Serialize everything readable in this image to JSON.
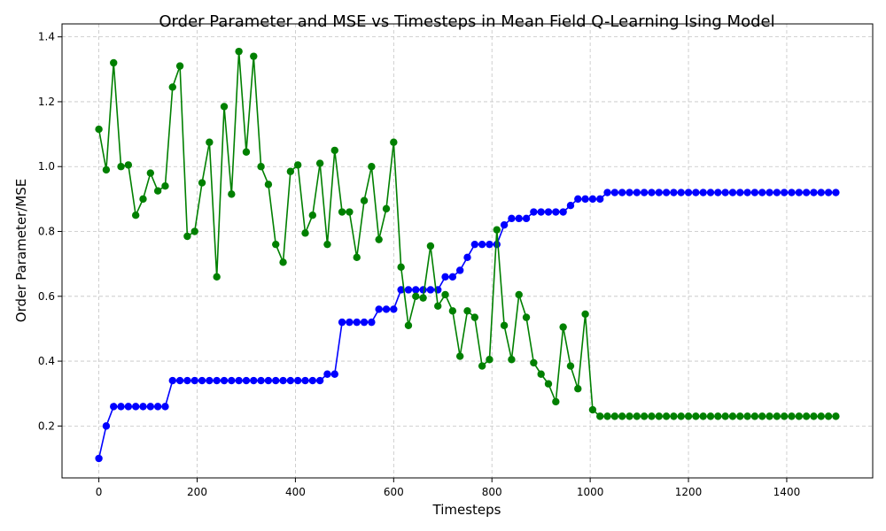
{
  "chart_data": {
    "type": "line",
    "title": "Order Parameter and MSE vs Timesteps in Mean Field Q-Learning Ising Model",
    "xlabel": "Timesteps",
    "ylabel": "Order Parameter/MSE",
    "xlim": [
      -75,
      1575
    ],
    "ylim": [
      0.04,
      1.44
    ],
    "xticks": [
      0,
      200,
      400,
      600,
      800,
      1000,
      1200,
      1400
    ],
    "yticks": [
      0.2,
      0.4,
      0.6,
      0.8,
      1.0,
      1.2,
      1.4
    ],
    "xtick_labels": [
      "0",
      "200",
      "400",
      "600",
      "800",
      "1000",
      "1200",
      "1400"
    ],
    "ytick_labels": [
      "0.2",
      "0.4",
      "0.6",
      "0.8",
      "1.0",
      "1.2",
      "1.4"
    ],
    "grid": true,
    "x": [
      0,
      15,
      30,
      45,
      60,
      75,
      90,
      105,
      120,
      135,
      150,
      165,
      180,
      195,
      210,
      225,
      240,
      255,
      270,
      285,
      300,
      315,
      330,
      345,
      360,
      375,
      390,
      405,
      420,
      435,
      450,
      465,
      480,
      495,
      510,
      525,
      540,
      555,
      570,
      585,
      600,
      615,
      630,
      645,
      660,
      675,
      690,
      705,
      720,
      735,
      750,
      765,
      780,
      795,
      810,
      825,
      840,
      855,
      870,
      885,
      900,
      915,
      930,
      945,
      960,
      975,
      990,
      1005,
      1020,
      1035,
      1050,
      1065,
      1080,
      1095,
      1110,
      1125,
      1140,
      1155,
      1170,
      1185,
      1200,
      1215,
      1230,
      1245,
      1260,
      1275,
      1290,
      1305,
      1320,
      1335,
      1350,
      1365,
      1380,
      1395,
      1410,
      1425,
      1440,
      1455,
      1470,
      1485,
      1500
    ],
    "series": [
      {
        "color": "#0000ff",
        "values": [
          0.1,
          0.2,
          0.26,
          0.26,
          0.26,
          0.26,
          0.26,
          0.26,
          0.26,
          0.26,
          0.34,
          0.34,
          0.34,
          0.34,
          0.34,
          0.34,
          0.34,
          0.34,
          0.34,
          0.34,
          0.34,
          0.34,
          0.34,
          0.34,
          0.34,
          0.34,
          0.34,
          0.34,
          0.34,
          0.34,
          0.34,
          0.36,
          0.36,
          0.52,
          0.52,
          0.52,
          0.52,
          0.52,
          0.56,
          0.56,
          0.56,
          0.62,
          0.62,
          0.62,
          0.62,
          0.62,
          0.62,
          0.66,
          0.66,
          0.68,
          0.72,
          0.76,
          0.76,
          0.76,
          0.76,
          0.82,
          0.84,
          0.84,
          0.84,
          0.86,
          0.86,
          0.86,
          0.86,
          0.86,
          0.88,
          0.9,
          0.9,
          0.9,
          0.9,
          0.92,
          0.92,
          0.92,
          0.92,
          0.92,
          0.92,
          0.92,
          0.92,
          0.92,
          0.92,
          0.92,
          0.92,
          0.92,
          0.92,
          0.92,
          0.92,
          0.92,
          0.92,
          0.92,
          0.92,
          0.92,
          0.92,
          0.92,
          0.92,
          0.92,
          0.92,
          0.92,
          0.92,
          0.92,
          0.92,
          0.92,
          0.92
        ]
      },
      {
        "color": "#008000",
        "values": [
          1.115,
          0.99,
          1.32,
          1.0,
          1.005,
          0.85,
          0.9,
          0.98,
          0.925,
          0.94,
          1.245,
          1.31,
          0.785,
          0.8,
          0.95,
          1.075,
          0.66,
          1.185,
          0.915,
          1.355,
          1.045,
          1.34,
          1.0,
          0.945,
          0.76,
          0.705,
          0.985,
          1.005,
          0.795,
          0.85,
          1.01,
          0.76,
          1.05,
          0.86,
          0.86,
          0.72,
          0.895,
          1.0,
          0.775,
          0.87,
          1.075,
          0.69,
          0.51,
          0.6,
          0.595,
          0.755,
          0.57,
          0.605,
          0.555,
          0.415,
          0.555,
          0.535,
          0.385,
          0.405,
          0.805,
          0.51,
          0.405,
          0.605,
          0.535,
          0.395,
          0.36,
          0.33,
          0.275,
          0.505,
          0.385,
          0.315,
          0.545,
          0.25,
          0.23,
          0.23,
          0.23,
          0.23,
          0.23,
          0.23,
          0.23,
          0.23,
          0.23,
          0.23,
          0.23,
          0.23,
          0.23,
          0.23,
          0.23,
          0.23,
          0.23,
          0.23,
          0.23,
          0.23,
          0.23,
          0.23,
          0.23,
          0.23,
          0.23,
          0.23,
          0.23,
          0.23,
          0.23,
          0.23,
          0.23,
          0.23,
          0.23
        ]
      }
    ]
  }
}
